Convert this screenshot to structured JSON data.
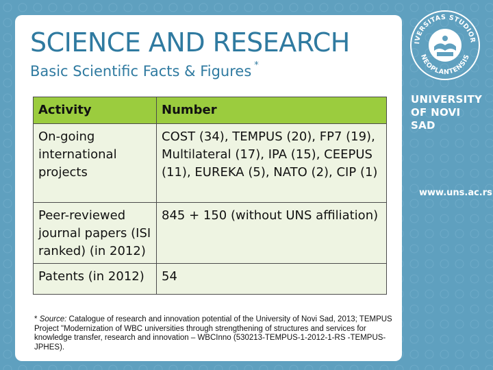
{
  "slide": {
    "title": "SCIENCE AND RESEARCH",
    "subtitle": "Basic Scientific Facts & Figures",
    "subtitle_mark": "*"
  },
  "table": {
    "headers": [
      "Activity",
      "Number"
    ],
    "rows": [
      {
        "activity": "On-going international projects",
        "number": "COST (34), TEMPUS (20), FP7 (19), Multilateral (17), IPA (15), CEEPUS (11), EUREKA (5), NATO (2), CIP (1)"
      },
      {
        "activity": "Peer-reviewed journal papers (ISI ranked) (in 2012)",
        "number": "845 + 150 (without UNS affiliation)"
      },
      {
        "activity": "Patents (in 2012)",
        "number": "54"
      }
    ]
  },
  "footnote": {
    "mark": "*",
    "label": "Source:",
    "text": "Catalogue of research and innovation potential of the University of Novi Sad, 2013; TEMPUS Project \"Modernization of WBC universities through strengthening of structures and services for knowledge transfer, research and innovation – WBCInno (530213-TEMPUS-1-2012-1-RS -TEMPUS-JPHES)."
  },
  "branding": {
    "university_line1": "UNIVERSITY",
    "university_line2": "OF NOVI SAD",
    "website": "www.uns.ac.rs",
    "seal_text_top": "UNIVERSITAS STUDIORUM",
    "seal_text_bottom": "NEOPLANTENSIS",
    "colors": {
      "accent": "#2f7aa0",
      "header_green": "#9bcc3e",
      "row_tint": "#eef4e2",
      "background": "#5fa0bf"
    }
  }
}
